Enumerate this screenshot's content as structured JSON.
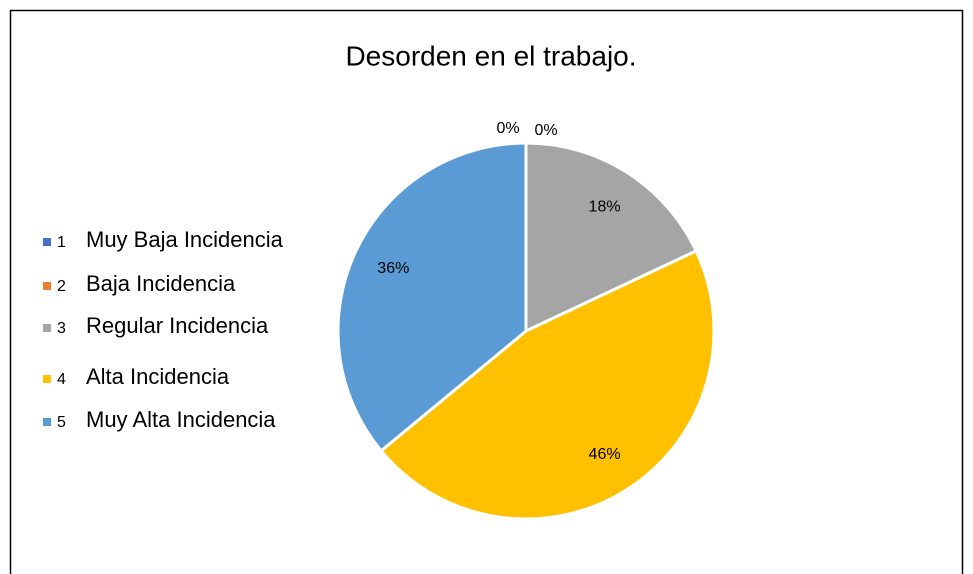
{
  "chart_data": {
    "type": "pie",
    "title": "Desorden en el trabajo.",
    "categories": [
      "1",
      "2",
      "3",
      "4",
      "5"
    ],
    "category_labels": [
      "Muy Baja Incidencia",
      "Baja Incidencia",
      "Regular Incidencia",
      "Alta Incidencia",
      "Muy Alta Incidencia"
    ],
    "values": [
      0,
      0,
      18,
      46,
      36
    ],
    "value_labels": [
      "0%",
      "0%",
      "18%",
      "46%",
      "36%"
    ],
    "colors": [
      "#4472c4",
      "#ed7d31",
      "#a5a5a5",
      "#ffc000",
      "#5b9bd5"
    ],
    "legend": "left"
  }
}
